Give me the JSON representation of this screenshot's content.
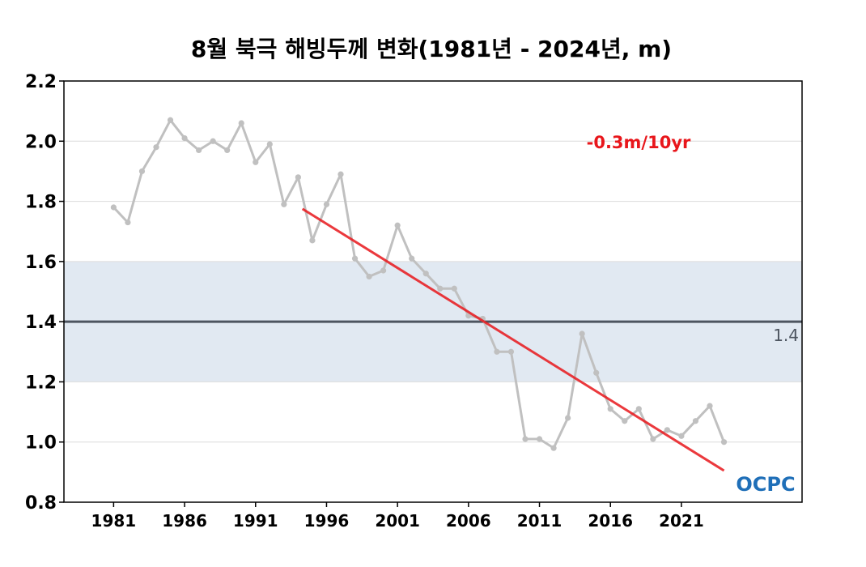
{
  "chart_data": {
    "type": "line",
    "title": "8월 북극 해빙두께 변화(1981년 - 2024년, m)",
    "xlabel": "",
    "ylabel": "",
    "xlim": [
      1977.5,
      2029.5
    ],
    "ylim": [
      0.8,
      2.2
    ],
    "yticks": [
      0.8,
      1.0,
      1.2,
      1.4,
      1.6,
      1.8,
      2.0,
      2.2
    ],
    "ytick_labels": [
      "0.8",
      "1.0",
      "1.2",
      "1.4",
      "1.6",
      "1.8",
      "2.0",
      "2.2"
    ],
    "xticks": [
      1981,
      1986,
      1991,
      1996,
      2001,
      2006,
      2011,
      2016,
      2021
    ],
    "xtick_labels": [
      "1981",
      "1986",
      "1991",
      "1996",
      "2001",
      "2006",
      "2011",
      "2016",
      "2021"
    ],
    "grid": "horizontal",
    "x": [
      1981,
      1982,
      1983,
      1984,
      1985,
      1986,
      1987,
      1988,
      1989,
      1990,
      1991,
      1992,
      1993,
      1994,
      1995,
      1996,
      1997,
      1998,
      1999,
      2000,
      2001,
      2002,
      2003,
      2004,
      2005,
      2006,
      2007,
      2008,
      2009,
      2010,
      2011,
      2012,
      2013,
      2014,
      2015,
      2016,
      2017,
      2018,
      2019,
      2020,
      2021,
      2022,
      2023,
      2024
    ],
    "series": [
      {
        "values": [
          1.78,
          1.73,
          1.9,
          1.98,
          2.07,
          2.01,
          1.97,
          2.0,
          1.97,
          2.06,
          1.93,
          1.99,
          1.79,
          1.88,
          1.67,
          1.79,
          1.89,
          1.61,
          1.55,
          1.57,
          1.72,
          1.61,
          1.56,
          1.51,
          1.51,
          1.42,
          1.41,
          1.3,
          1.3,
          1.01,
          1.01,
          0.98,
          1.08,
          1.36,
          1.23,
          1.11,
          1.07,
          1.11,
          1.01,
          1.04,
          1.02,
          1.07,
          1.12,
          1.0
        ],
        "color": "#c0c0c0"
      }
    ],
    "trend": {
      "x": [
        1994.3,
        2024.0
      ],
      "y": [
        1.775,
        0.905
      ],
      "label": "-0.3m/10yr",
      "color": "#e8161b"
    },
    "reference": {
      "value": 1.4,
      "label": "1.4",
      "color": "#4d5560",
      "band": [
        1.2,
        1.6
      ],
      "band_color": "#e1e9f2"
    },
    "logo_text": "OCPC",
    "logo_color": "#1f6fb8"
  }
}
